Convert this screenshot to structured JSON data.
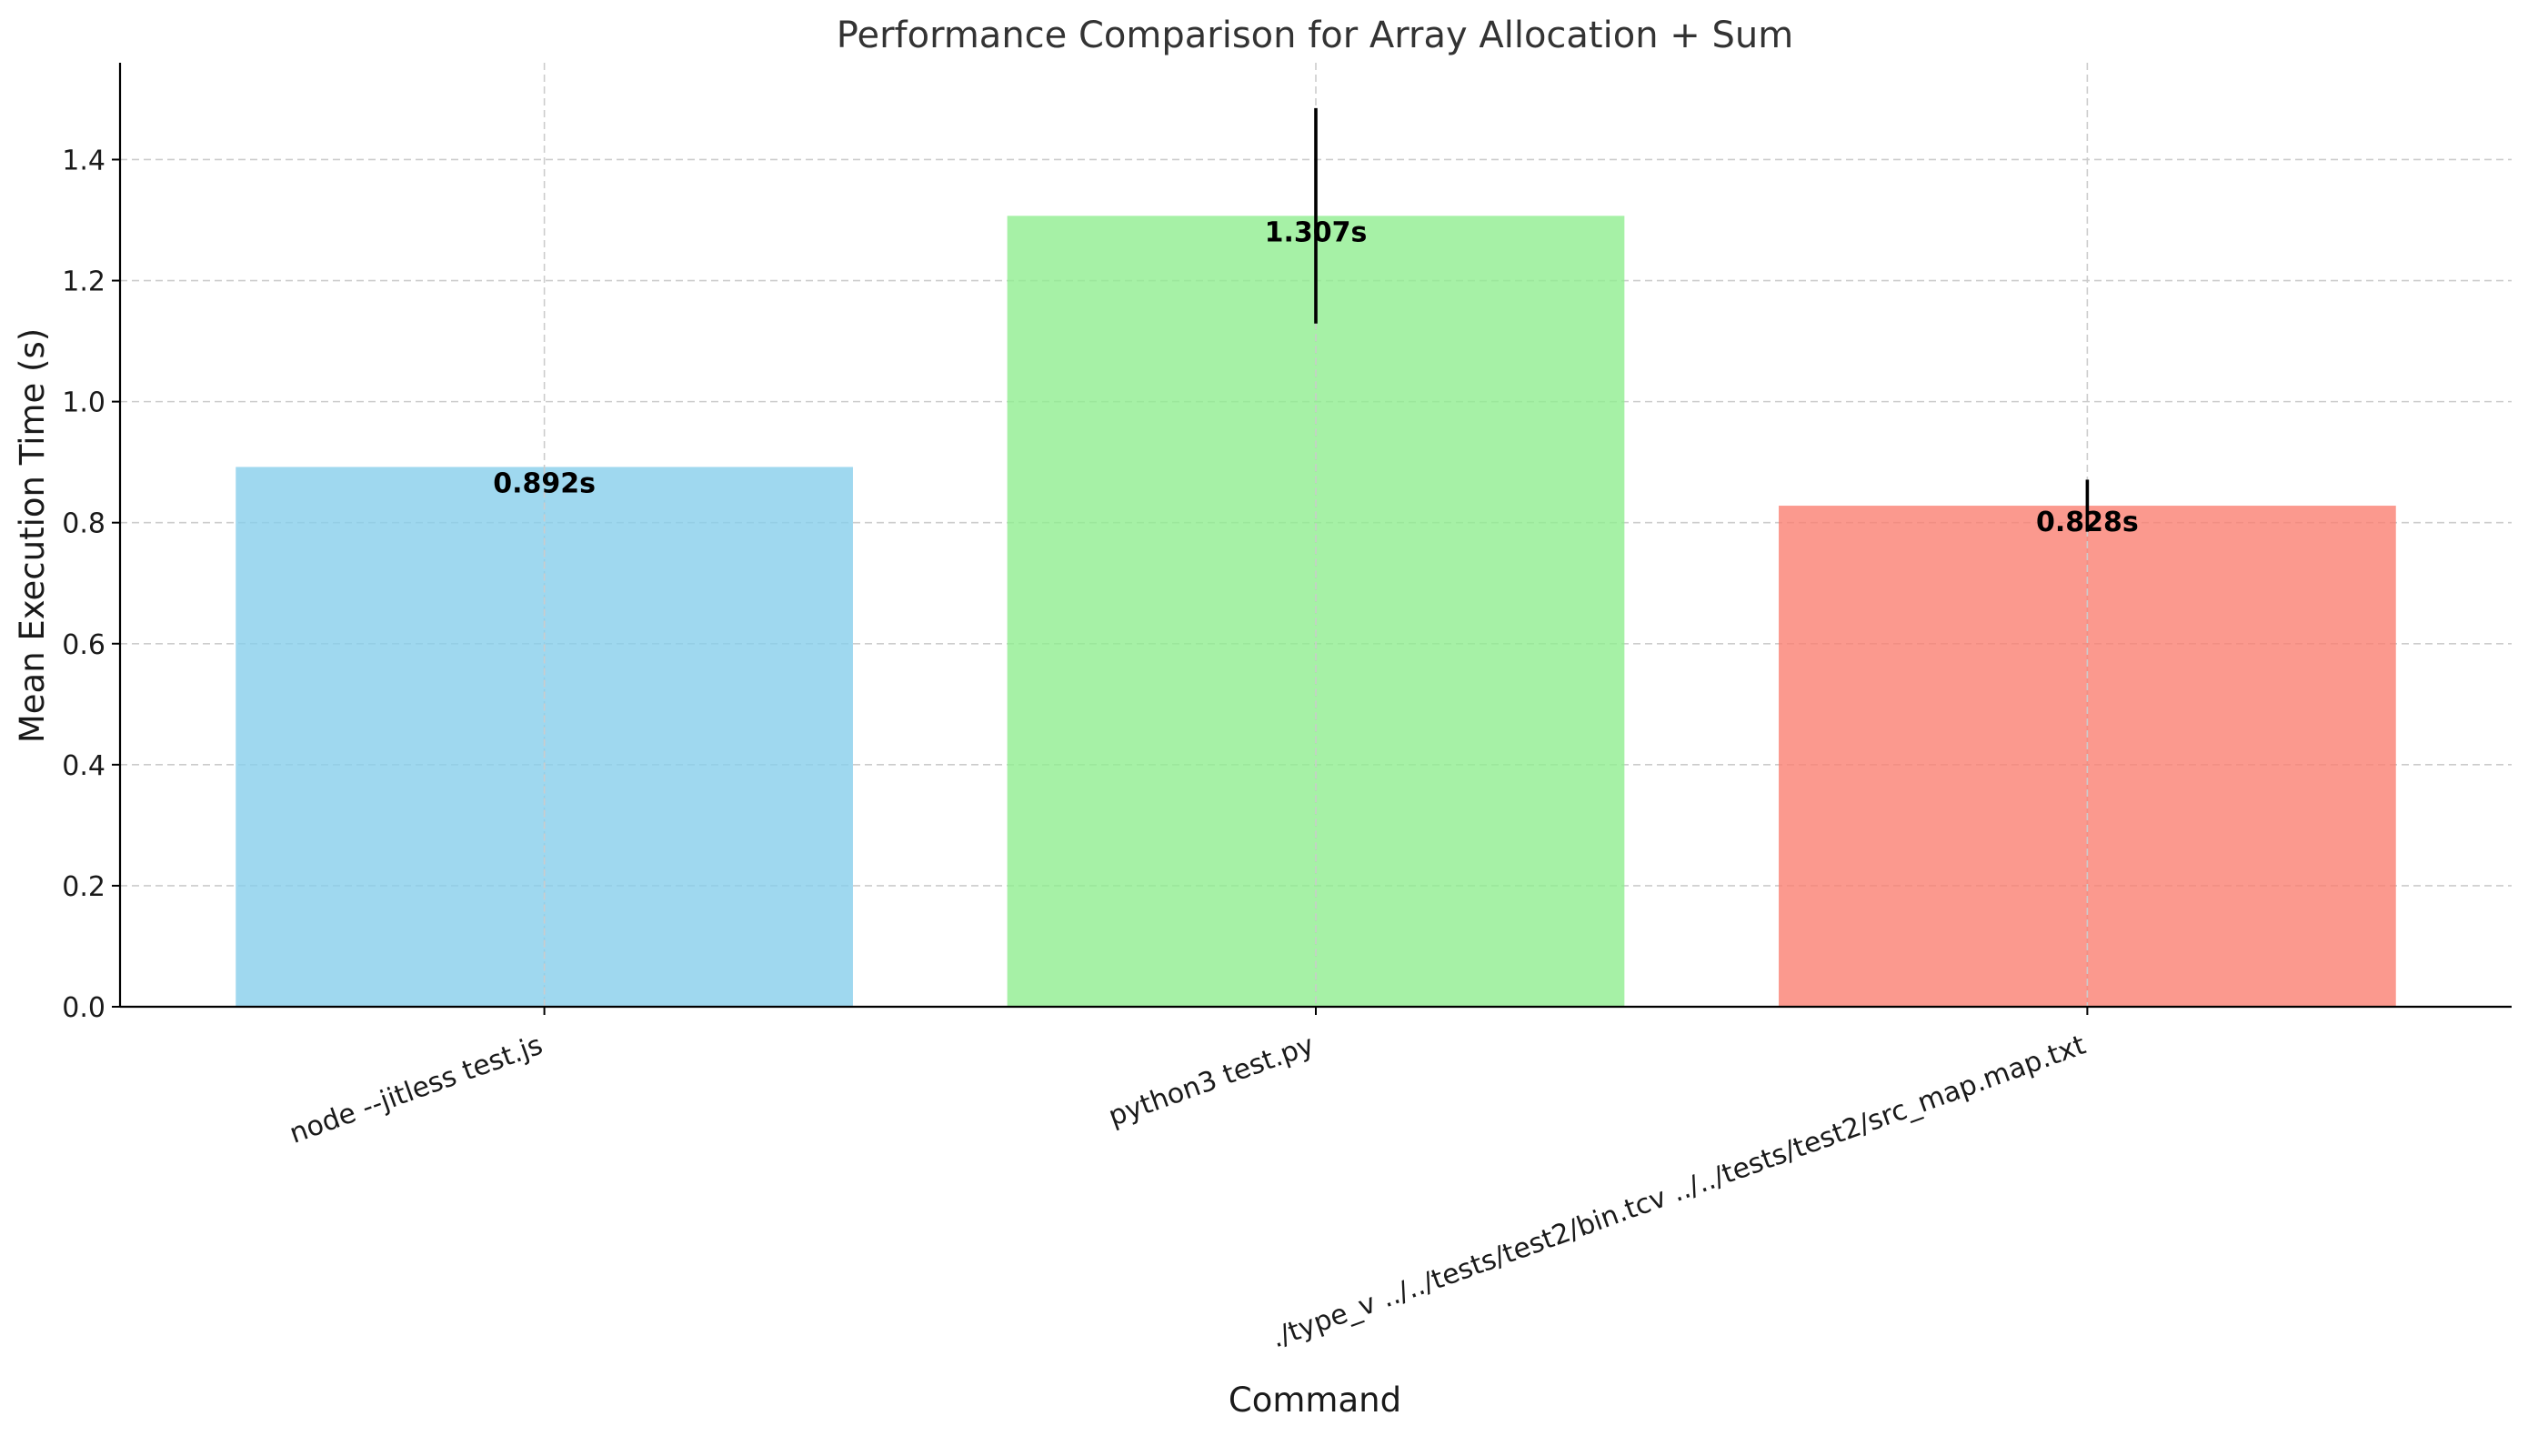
{
  "chart_data": {
    "type": "bar",
    "title": "Performance Comparison for Array Allocation + Sum",
    "xlabel": "Command",
    "ylabel": "Mean Execution Time (s)",
    "categories": [
      "node --jitless test.js",
      "python3 test.py",
      "./type_v ../../tests/test2/bin.tcv ../../tests/test2/src_map.map.txt"
    ],
    "values": [
      0.892,
      1.307,
      0.828
    ],
    "errors": [
      0.0,
      0.178,
      0.043
    ],
    "data_labels": [
      "0.892s",
      "1.307s",
      "0.828s"
    ],
    "colors": [
      "#87ceeb",
      "#90ee90",
      "#fa8072"
    ],
    "ylim": [
      0,
      1.56
    ],
    "yticks": [
      0.0,
      0.2,
      0.4,
      0.6,
      0.8,
      1.0,
      1.2,
      1.4
    ],
    "ytick_labels": [
      "0.0",
      "0.2",
      "0.4",
      "0.6",
      "0.8",
      "1.0",
      "1.2",
      "1.4"
    ],
    "grid": true,
    "legend": "none"
  }
}
